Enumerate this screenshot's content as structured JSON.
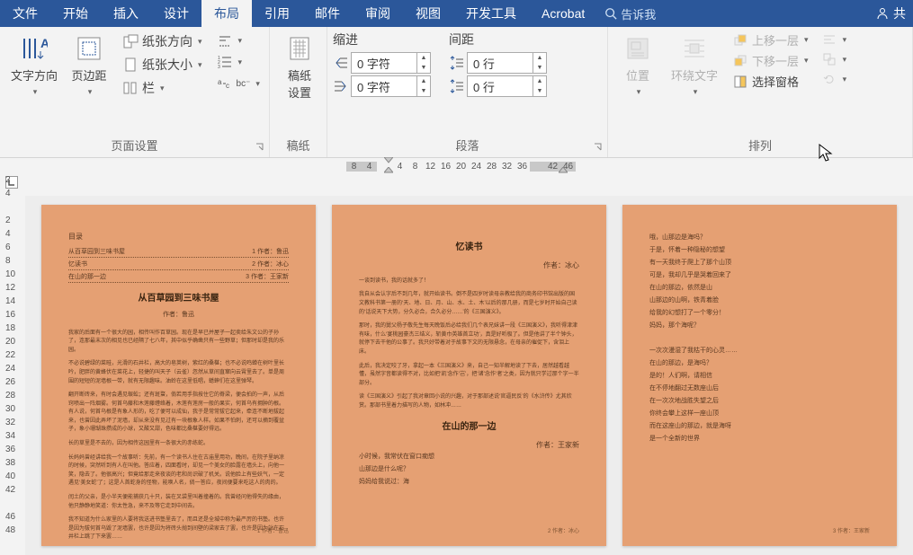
{
  "tabs": {
    "file": "文件",
    "home": "开始",
    "insert": "插入",
    "design": "设计",
    "layout": "布局",
    "references": "引用",
    "mailings": "邮件",
    "review": "审阅",
    "view": "视图",
    "developer": "开发工具",
    "acrobat": "Acrobat"
  },
  "tellme": "告诉我",
  "share": "共",
  "page_setup": {
    "text_direction": "文字方向",
    "margins": "页边距",
    "orientation": "纸张方向",
    "size": "纸张大小",
    "columns": "栏",
    "title": "页面设置"
  },
  "draft": {
    "btn": "稿纸\n设置",
    "title": "稿纸"
  },
  "para": {
    "indent_label": "缩进",
    "spacing_label": "间距",
    "indent_left": "0 字符",
    "indent_right": "0 字符",
    "space_before": "0 行",
    "space_after": "0 行",
    "title": "段落"
  },
  "arrange": {
    "position": "位置",
    "wrap": "环绕文字",
    "bring_forward": "上移一层",
    "send_backward": "下移一层",
    "selection_pane": "选择窗格",
    "title": "排列"
  },
  "hruler": [
    "8",
    "4",
    "",
    "4",
    "8",
    "12",
    "16",
    "20",
    "24",
    "28",
    "32",
    "36",
    "",
    "42",
    "46"
  ],
  "vruler": [
    "2",
    "4",
    "",
    "2",
    "4",
    "6",
    "8",
    "10",
    "12",
    "14",
    "16",
    "18",
    "20",
    "22",
    "24",
    "26",
    "28",
    "30",
    "32",
    "34",
    "36",
    "38",
    "40",
    "42",
    "",
    "46",
    "48"
  ],
  "doc": {
    "page1": {
      "toc_title": "目录",
      "toc": [
        [
          "从百草园到三味书屋",
          "1 作者：鲁迅"
        ],
        [
          "忆读书",
          "2 作者：冰心"
        ],
        [
          "在山的那一边",
          "3 作者：王家新"
        ]
      ],
      "h": "从百草园到三味书屋",
      "auth": "作者：鲁迅",
      "p": [
        "我家的后面有一个很大的园，相传叫作百草园。现在是早已并屋子一起卖给朱文公的子孙了，连那最末次的相见也已经隔了七八年，其中似乎确凿只有一些野草；但那时却是我的乐园。",
        "不必说碧绿的菜畦，光滑的石井栏，高大的皂荚树，紫红的桑椹；也不必说鸣蝉在树叶里长吟，肥胖的黄蜂伏在菜花上，轻捷的叫天子（云雀）忽然从草间直窜向云霄里去了。单是周围的短短的泥墙根一带，就有无限趣味。油蛉在这里低唱，蟋蟀们在这里弹琴。",
        "翻开断砖来，有时会遇见蜈蚣；还有斑蝥，倘若用手指按住它的脊梁，便会拍的一声，从后窍喷出一阵烟雾。何首乌藤和木莲藤缠络着，木莲有莲房一般的果实，何首乌有拥肿的根。有人说，何首乌根是有象人形的，吃了便可以成仙，我于是常常拔它起来，牵连不断地拔起来，也曾因此弄坏了泥墙，却从来没有见过有一块根象人样。如果不怕刺，还可以摘到覆盆子，象小珊瑚珠攒成的小球，又酸又甜，色味都比桑椹要好得远。",
        "长的草里是不去的，因为相传这园里有一条很大的赤练蛇。",
        "长妈妈曾经讲给我一个故事听：先前，有一个读书人住在古庙里用功，晚间，在院子里纳凉的时候，突然听到有人在叫他。答应着，四面看时，却见一个美女的脸露在墙头上，向他一笑，隐去了。他很高兴；但竟给那走来夜谈的老和尚识破了机关。说他脸上有些妖气，一定遇见‘美女蛇’了；这是人首蛇身的怪物，能唤人名，倘一答应，夜间便要来吃这人的肉的。",
        "闰土的父亲，是小半天便能捕获几十只，装在叉袋里叫着撞着的。我曾经问他得失的缘由，他只静静地笑道：你太性急，来不及等它走到中间去。",
        "我不知道为什么家里的人要将我送进书塾里去了，而且还是全城中称为最严厉的书塾。也许是因为拔何首乌毁了泥墙罢，也许是因为将砖头抛到间壁的梁家去了罢，也许是因为站在石井栏上跳了下来罢……"
      ],
      "foot": "1 作者：鲁迅"
    },
    "page2": {
      "h1": "忆读书",
      "auth1": "作者：冰心",
      "p1": [
        "一谈到读书，我的话就多了！",
        "我自从会认字后不到几年，就开始读书。倒不是四岁时读母亲教给我的商务印书馆出版的国文教科书第一册的‘天、地、日、月、山、水、土、木’以后的那几册，而是七岁时开始自己读的‘话说天下大势，分久必合，合久必分……’的《三国演义》。",
        "那时，我的舅父杨子敬先生每天晚饭后必给我们几个表兄妹讲一段《三国演义》，我听得津津有味，什么‘宴桃园豪杰三结义，斩黄巾英雄首立功’，真是好听极了。但是他讲了半个钟头，就停下去干他的公事了。我只好带着对于故事下文的无限悬念，在母亲的催促下，含泪上床。",
        "此后，我决定咬了牙，拿起一本《三国演义》来，自己一知半解地读了下去，居然越看越懂，虽然字音都读得不对，比如把‘凯’念作‘岂’，把‘诸’念作‘者’之类，因为就只学过那个字一半部分。",
        "读《三国演义》引起了我对章回小说的兴趣，对于那部述说‘官逼民反’的《水浒传》尤其欣赏。那部书里着力描写的人物，如林冲……"
      ],
      "h2": "在山的那一边",
      "auth2": "作者：王家新",
      "p2": [
        "小时候，我常伏在窗口痴想",
        "山那边是什么呢？",
        "妈妈给我说过：海"
      ],
      "foot": "2 作者：冰心"
    },
    "page3": {
      "poem": [
        "哦，山那边是海吗？",
        "于是，怀着一种隐秘的想望",
        "有一天我终于爬上了那个山顶",
        "可是，我却几乎是哭着回来了",
        "在山的那边，依然是山",
        "山那边的山啊，铁青着脸",
        "给我的幻想打了一个零分！",
        "妈妈，那个海呢？",
        "",
        "一次次漫湿了我枯干的心灵……",
        "在山的那边，是海吗？",
        "是的！人们啊，请相信",
        "在不停地翻过无数座山后",
        "在一次次地战胜失望之后",
        "你终会攀上这样一座山顶",
        "而在这座山的那边，就是海呀",
        "是一个全新的世界"
      ],
      "foot": "3 作者：王家新"
    }
  }
}
